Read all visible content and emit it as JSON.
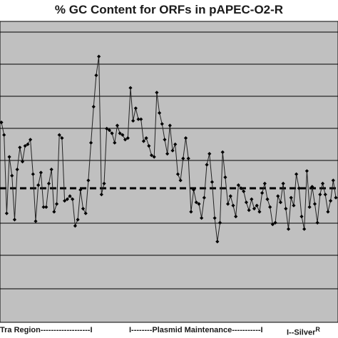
{
  "chart_data": {
    "type": "line",
    "title": "% GC Content for ORFs in pAPEC-O2-R",
    "xlabel": "",
    "ylabel": "",
    "grid": true,
    "reference_line": {
      "style": "dashed"
    },
    "regions": [
      {
        "label": "Tra Region-------------------I"
      },
      {
        "label": "I--------Plasmid Maintenance-----------I"
      },
      {
        "label_prefix": "I--Silver",
        "label_sup": "R"
      }
    ],
    "x": [
      1,
      2,
      3,
      4,
      5,
      6,
      7,
      8,
      9,
      10,
      11,
      12,
      13,
      14,
      15,
      16,
      17,
      18,
      19,
      20,
      21,
      22,
      23,
      24,
      25,
      26,
      27,
      28,
      29,
      30,
      31,
      32,
      33,
      34,
      35,
      36,
      37,
      38,
      39,
      40,
      41,
      42,
      43,
      44,
      45,
      46,
      47,
      48,
      49,
      50,
      51,
      52,
      53,
      54,
      55,
      56,
      57,
      58,
      59,
      60,
      61,
      62,
      63,
      64,
      65,
      66,
      67,
      68,
      69,
      70,
      71,
      72,
      73,
      74,
      75,
      76,
      77,
      78,
      79,
      80,
      81,
      82,
      83,
      84,
      85,
      86,
      87,
      88,
      89,
      90,
      91,
      92,
      93,
      94,
      95,
      96,
      97,
      98,
      99,
      100,
      101,
      102,
      103,
      104,
      105,
      106,
      107,
      108,
      109,
      110,
      111,
      112,
      113,
      114,
      115,
      116,
      117,
      118,
      119,
      120,
      121,
      122,
      123,
      124,
      125,
      126,
      127,
      128
    ],
    "values": [
      4.2,
      3.4,
      -1.6,
      2.0,
      0.8,
      -2.0,
      1.2,
      2.6,
      1.7,
      2.7,
      2.8,
      3.1,
      0.9,
      -2.1,
      0.2,
      1.0,
      -1.2,
      -1.2,
      0.3,
      1.2,
      -1.5,
      -1.0,
      3.4,
      3.2,
      -0.8,
      -0.7,
      -0.5,
      -0.7,
      -2.4,
      -2.0,
      -0.1,
      -1.3,
      -1.6,
      0.5,
      2.9,
      5.2,
      7.2,
      8.4,
      -0.4,
      0.3,
      3.8,
      3.7,
      3.5,
      2.9,
      4.0,
      3.5,
      3.4,
      3.1,
      3.2,
      6.4,
      4.3,
      5.1,
      4.4,
      4.4,
      3.0,
      3.2,
      2.7,
      2.1,
      2.0,
      6.1,
      4.8,
      4.1,
      3.1,
      2.2,
      4.0,
      2.4,
      2.8,
      0.9,
      0.5,
      1.9,
      3.2,
      1.9,
      -1.5,
      -0.1,
      -0.9,
      -1.0,
      -1.9,
      -0.6,
      1.5,
      2.2,
      0.4,
      -1.9,
      -3.4,
      -2.2,
      2.3,
      0.7,
      -1.0,
      -0.5,
      -1.1,
      -1.8,
      0.2,
      0.0,
      -0.2,
      -0.9,
      -1.4,
      -0.7,
      -1.3,
      -1.1,
      -1.5,
      -0.3,
      0.3,
      -0.7,
      -1.2,
      -2.3,
      -2.2,
      -0.5,
      -0.9,
      0.3,
      -1.3,
      -2.6,
      -0.6,
      -1.1,
      0.9,
      0.0,
      -1.8,
      -2.6,
      1.1,
      -1.2,
      0.1,
      -1.0,
      -2.2,
      -0.4,
      0.3,
      -0.4,
      -1.5,
      -0.8,
      0.5,
      -0.6
    ]
  }
}
